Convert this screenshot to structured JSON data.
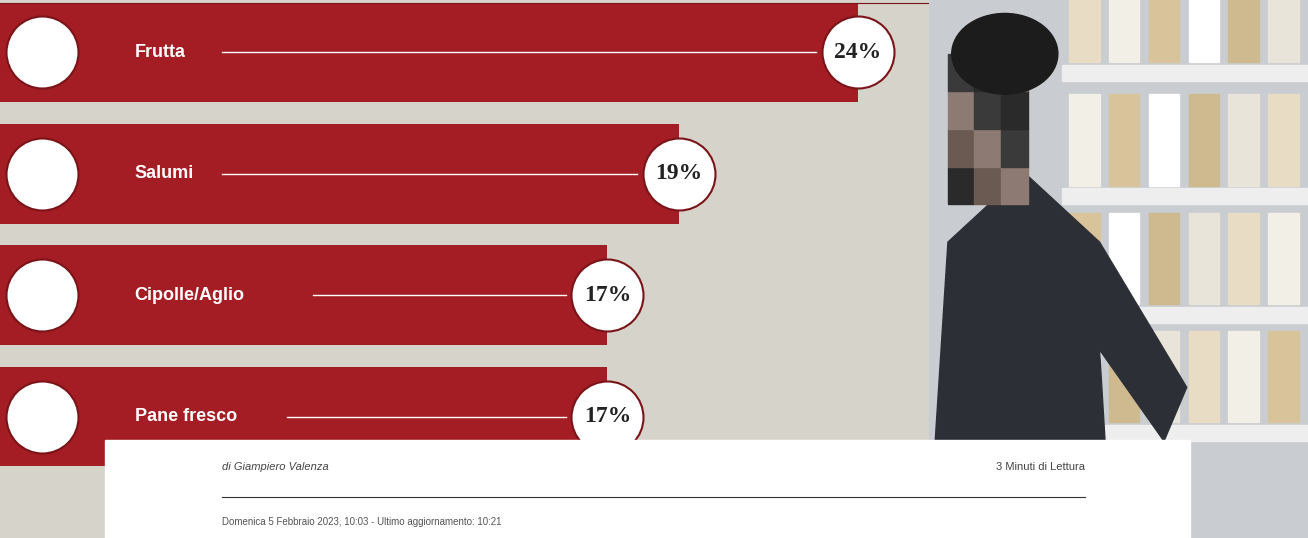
{
  "chart_data": {
    "type": "bar",
    "orientation": "horizontal",
    "categories": [
      "Frutta",
      "Salumi",
      "Cipolle/Aglio",
      "Pane fresco"
    ],
    "values": [
      24,
      19,
      17,
      17
    ],
    "value_labels": [
      "24%",
      "19%",
      "17%",
      "17%"
    ],
    "data_labels": true,
    "color": "#a51d24",
    "xlim": [
      0,
      26
    ],
    "tick_labels": false,
    "grid": false,
    "annotations": [
      "di Giampiero Valenza",
      "3 Minuti di Lettura",
      "Domenica 5 Febbraio 2023, 10:03 - Ultimo aggiornamento: 10:21"
    ]
  }
}
